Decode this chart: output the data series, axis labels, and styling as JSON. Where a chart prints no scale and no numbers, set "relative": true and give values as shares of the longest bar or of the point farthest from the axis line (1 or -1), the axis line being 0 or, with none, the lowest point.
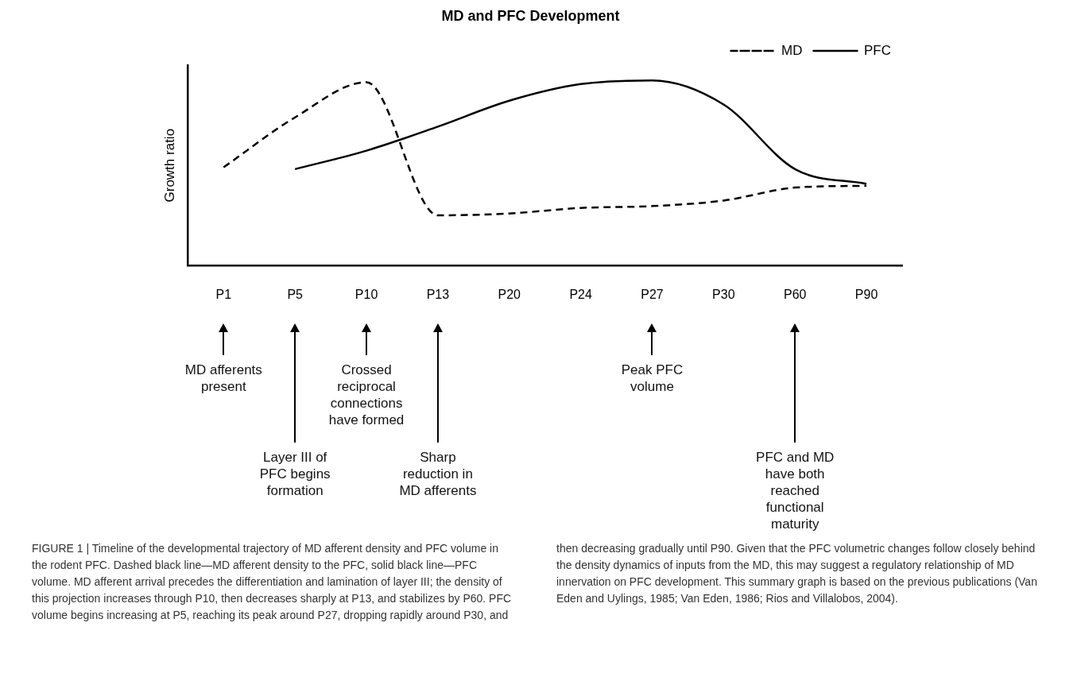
{
  "chart_data": {
    "type": "line",
    "title": "MD and PFC Development",
    "ylabel": "Growth ratio",
    "relative": true,
    "categories": [
      "P1",
      "P5",
      "P10",
      "P13",
      "P20",
      "P24",
      "P27",
      "P30",
      "P60",
      "P90"
    ],
    "series": [
      {
        "name": "MD",
        "color": "#000000",
        "line_style": "dashed",
        "values": [
          0.53,
          0.8,
          0.99,
          0.27,
          0.28,
          0.31,
          0.32,
          0.35,
          0.42,
          0.43
        ]
      },
      {
        "name": "PFC",
        "color": "#000000",
        "line_style": "solid",
        "values": [
          null,
          0.52,
          0.62,
          0.75,
          0.89,
          0.98,
          1.0,
          0.87,
          0.52,
          0.44
        ]
      }
    ],
    "legend": "top right",
    "marker": "none",
    "grid": false,
    "annotations": [
      "MD afferents present",
      "Layer III of PFC begins formation",
      "Crossed reciprocal connections have formed",
      "Sharp reduction in MD afferents",
      "Peak PFC volume",
      "PFC and MD have both reached functional maturity",
      "FIGURE 1 | Timeline of the developmental trajectory of MD afferent density and PFC volume in the rodent PFC. Dashed black line—MD afferent density to the PFC, solid black line—PFC volume. MD afferent arrival precedes the differentiation and lamination of layer III; the density of this projection increases through P10, then decreases sharply at P13, and stabilizes by P60. PFC volume begins increasing at P5, reaching its peak around P27, dropping rapidly around P30, and then decreasing gradually until P90. Given that the PFC volumetric changes follow closely behind the density dynamics of inputs from the MD, this may suggest a regulatory relationship of MD innervation on PFC development. This summary graph is based on the previous publications (Van Eden and Uylings, 1985; Van Eden, 1986; Rios and Villalobos, 2004)."
    ]
  }
}
